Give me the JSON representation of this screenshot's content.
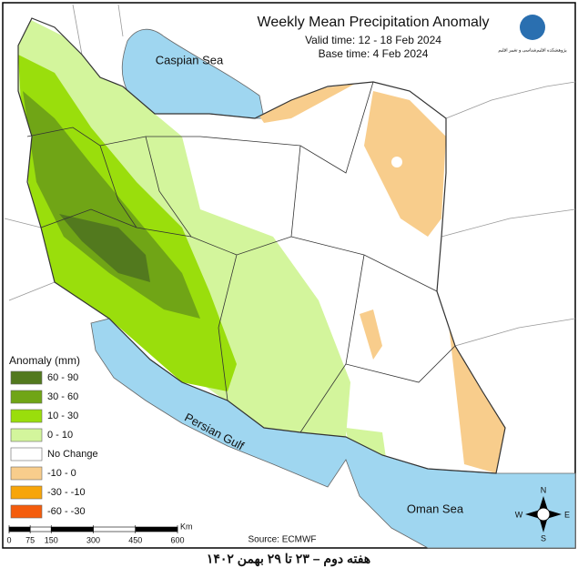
{
  "title": "Weekly Mean Precipitation Anomaly",
  "valid_time": "Valid time:  12 - 18 Feb 2024",
  "base_time": "Base time: 4 Feb 2024",
  "logo_text": "پژوهشکده اقلیم‌شناسی و تغییر اقلیم",
  "source": "Source: ECMWF",
  "legend": {
    "title": "Anomaly (mm)",
    "items": [
      {
        "label": "60 - 90",
        "color": "#52791e"
      },
      {
        "label": "30 - 60",
        "color": "#70a516"
      },
      {
        "label": "10 - 30",
        "color": "#9ade0c"
      },
      {
        "label": "0 - 10",
        "color": "#d3f59c"
      },
      {
        "label": "No Change",
        "color": "#ffffff"
      },
      {
        "label": "-10 - 0",
        "color": "#f8cd8c"
      },
      {
        "label": "-30 - -10",
        "color": "#f7a50a"
      },
      {
        "label": "-60 - -30",
        "color": "#f45c0c"
      }
    ]
  },
  "scale": {
    "ticks": [
      0,
      75,
      150,
      300,
      450,
      600
    ],
    "unit": "Km"
  },
  "labels": {
    "caspian": "Caspian Sea",
    "persian_gulf": "Persian Gulf",
    "oman_sea": "Oman Sea"
  },
  "compass": {
    "n": "N",
    "e": "E",
    "s": "S",
    "w": "W"
  },
  "caption": "هفته دوم – ۲۳ تا ۲۹ بهمن ۱۴۰۲"
}
